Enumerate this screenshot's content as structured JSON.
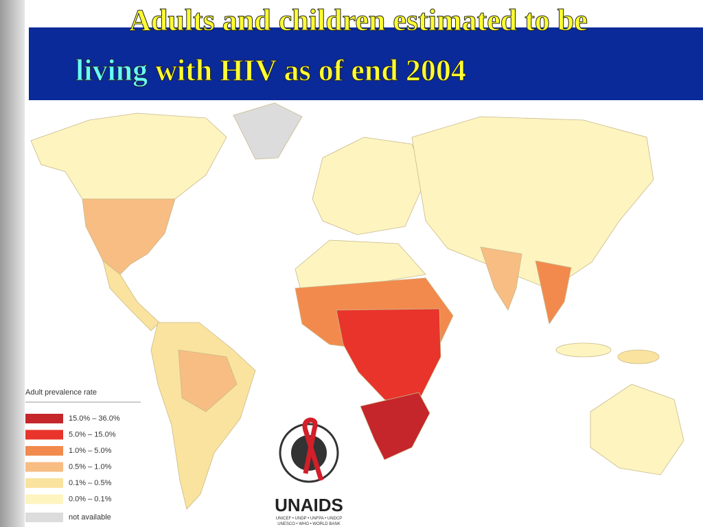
{
  "title": {
    "line1": "Adults and children estimated to be",
    "line2_highlight": "living",
    "line2_rest": " with HIV as of end 2004"
  },
  "legend": {
    "title": "Adult prevalence rate",
    "items": [
      {
        "label": "15.0%  –  36.0%",
        "color": "#c4262b"
      },
      {
        "label": "5.0%    –  15.0%",
        "color": "#e8342b"
      },
      {
        "label": "1.0%    –  5.0%",
        "color": "#f28a4e"
      },
      {
        "label": "0.5%    –  1.0%",
        "color": "#f7bd82"
      },
      {
        "label": "0.1%    –  0.5%",
        "color": "#fae39e"
      },
      {
        "label": "0.0%    –  0.1%",
        "color": "#fdf4c0"
      },
      {
        "label": "not available",
        "color": "#dcdcdc"
      }
    ]
  },
  "logo": {
    "name": "UNAIDS",
    "line1": "UNICEF • UNDP • UNFPA • UNDCP",
    "line2": "UNESCO • WHO • WORLD BANK"
  }
}
